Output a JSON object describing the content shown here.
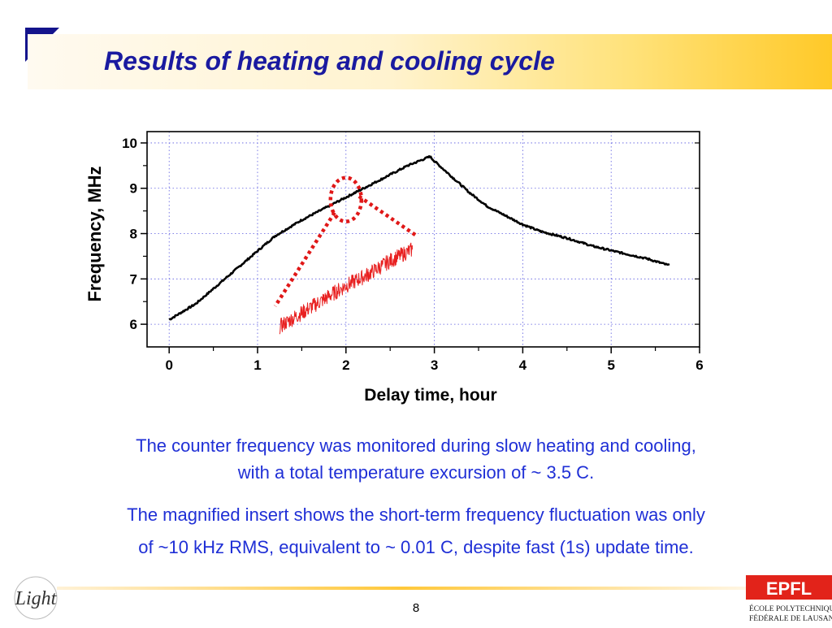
{
  "slide": {
    "title": "Results of heating and cooling cycle",
    "caption_1": [
      "The counter frequency was monitored during slow heating and cooling,",
      "with a total temperature excursion of ~ 3.5 C."
    ],
    "caption_2": [
      "The magnified insert shows the short-term frequency fluctuation was only",
      "of ~10 kHz RMS, equivalent to ~ 0.01 C, despite fast (1s) update time."
    ],
    "page_number": "8",
    "logo_left_text": "Light",
    "logo_right": {
      "mark": "EPFL",
      "line1": "ÉCOLE POLYTECHNIQUE",
      "line2": "FÉDÉRALE DE LAUSANNE"
    }
  },
  "colors": {
    "title": "#1a1aa0",
    "caption": "#1f2fd6",
    "main_series": "#000000",
    "insert_series": "#e82020",
    "insert_highlight": "#e01818",
    "epfl_red": "#e2231a"
  },
  "chart_data": {
    "type": "line",
    "title": "",
    "xlabel": "Delay time, hour",
    "ylabel": "Frequency, MHz",
    "xlim": [
      -0.25,
      6
    ],
    "ylim": [
      5.5,
      10.25
    ],
    "xticks": [
      0,
      1,
      2,
      3,
      4,
      5,
      6
    ],
    "yticks": [
      6,
      7,
      8,
      9,
      10
    ],
    "grid": true,
    "series": [
      {
        "x": [
          0,
          0.3,
          0.6,
          0.9,
          1.2,
          1.5,
          1.8,
          2.1,
          2.4,
          2.7,
          2.95,
          3.0,
          3.2,
          3.4,
          3.6,
          3.8,
          4.0,
          4.2,
          4.5,
          4.8,
          5.1,
          5.4,
          5.65
        ],
        "values": [
          6.1,
          6.45,
          6.95,
          7.45,
          7.95,
          8.3,
          8.6,
          8.9,
          9.2,
          9.5,
          9.7,
          9.6,
          9.25,
          8.9,
          8.6,
          8.4,
          8.2,
          8.05,
          7.9,
          7.72,
          7.58,
          7.45,
          7.3
        ]
      },
      {
        "x": [
          1.25,
          1.5,
          1.75,
          2.0,
          2.25,
          2.5,
          2.75
        ],
        "values": [
          5.95,
          6.25,
          6.55,
          6.85,
          7.1,
          7.4,
          7.65
        ]
      }
    ],
    "annotation": {
      "highlight_center": [
        2.0,
        8.75
      ],
      "callout_ends": [
        [
          1.2,
          6.4
        ],
        [
          2.8,
          7.95
        ]
      ]
    }
  }
}
